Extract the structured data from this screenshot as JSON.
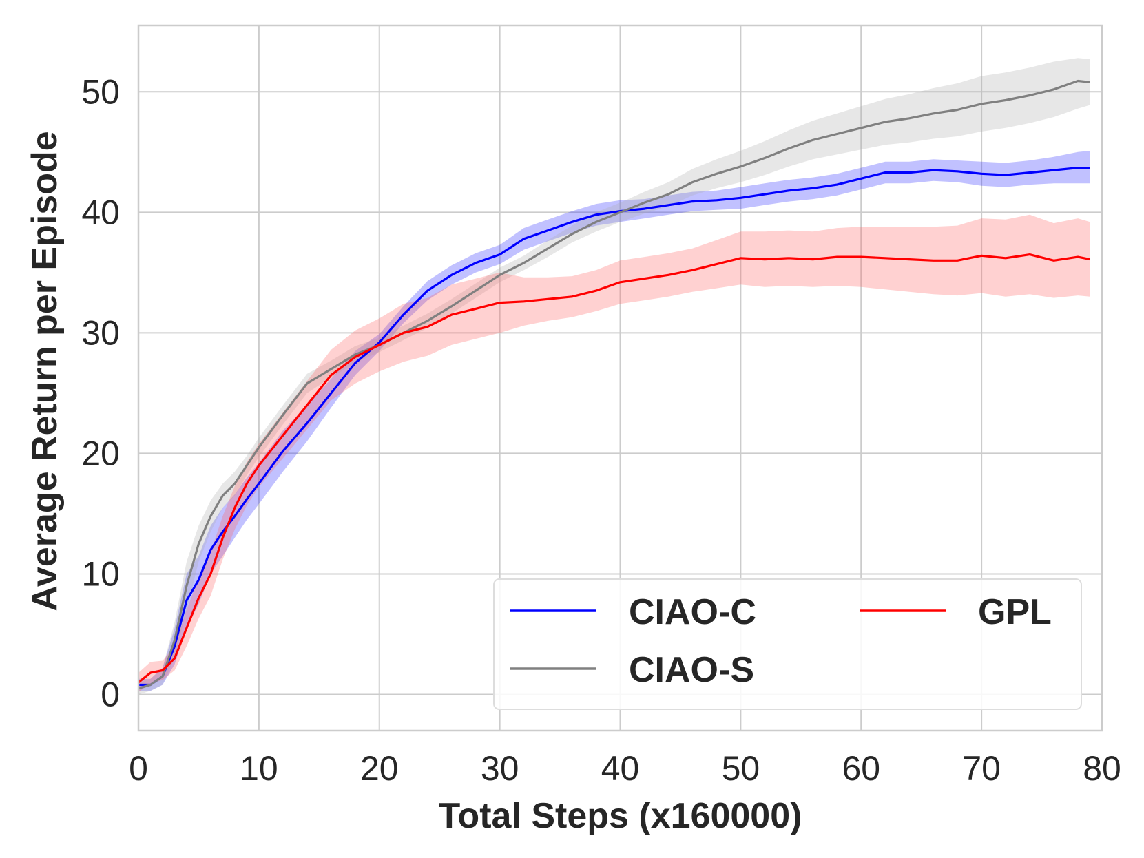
{
  "chart_data": {
    "type": "line",
    "xlabel": "Total Steps (x160000)",
    "ylabel": "Average Return per Episode",
    "xlim": [
      0,
      80
    ],
    "ylim": [
      -3,
      55.5
    ],
    "xticks": [
      0,
      10,
      20,
      30,
      40,
      50,
      60,
      70,
      80
    ],
    "yticks": [
      0,
      10,
      20,
      30,
      40,
      50
    ],
    "grid": true,
    "legend_position": "lower-right",
    "legend_columns": 2,
    "series": [
      {
        "name": "CIAO-C",
        "color": "#0000ff",
        "band_color": "#3333ff",
        "x": [
          0,
          1,
          2,
          3,
          4,
          5,
          6,
          7,
          8,
          9,
          10,
          12,
          14,
          16,
          18,
          20,
          22,
          24,
          26,
          28,
          30,
          32,
          34,
          36,
          38,
          40,
          42,
          44,
          46,
          48,
          50,
          52,
          54,
          56,
          58,
          60,
          62,
          64,
          66,
          68,
          70,
          72,
          74,
          76,
          78,
          79
        ],
        "y": [
          0.8,
          0.8,
          1.5,
          4.0,
          7.8,
          9.5,
          12.0,
          13.5,
          14.8,
          16.2,
          17.5,
          20.2,
          22.5,
          25.0,
          27.5,
          29.2,
          31.5,
          33.5,
          34.8,
          35.8,
          36.5,
          37.8,
          38.5,
          39.2,
          39.8,
          40.1,
          40.3,
          40.6,
          40.9,
          41.0,
          41.2,
          41.5,
          41.8,
          42.0,
          42.3,
          42.8,
          43.3,
          43.3,
          43.5,
          43.4,
          43.2,
          43.1,
          43.3,
          43.5,
          43.7,
          43.7
        ],
        "lower": [
          0.3,
          0.3,
          0.8,
          2.5,
          5.5,
          7.5,
          10.0,
          11.5,
          13.0,
          14.5,
          15.8,
          18.5,
          21.0,
          23.8,
          26.5,
          28.5,
          30.8,
          32.7,
          34.0,
          35.0,
          35.7,
          36.9,
          37.6,
          38.3,
          38.9,
          39.2,
          39.5,
          39.8,
          40.1,
          40.2,
          40.3,
          40.6,
          40.9,
          41.1,
          41.4,
          41.9,
          42.4,
          42.4,
          42.6,
          42.5,
          42.2,
          42.1,
          42.3,
          42.4,
          42.4,
          42.4
        ],
        "upper": [
          1.3,
          1.3,
          2.2,
          5.5,
          10.0,
          11.5,
          14.0,
          15.5,
          16.6,
          18.0,
          19.2,
          21.9,
          24.0,
          26.2,
          28.5,
          29.9,
          32.2,
          34.3,
          35.6,
          36.6,
          37.3,
          38.7,
          39.4,
          40.1,
          40.7,
          41.0,
          41.1,
          41.4,
          41.7,
          41.8,
          42.1,
          42.4,
          42.7,
          42.9,
          43.2,
          43.7,
          44.2,
          44.2,
          44.4,
          44.3,
          44.2,
          44.1,
          44.3,
          44.6,
          45.0,
          45.1
        ]
      },
      {
        "name": "CIAO-S",
        "color": "#808080",
        "band_color": "#b0b0b0",
        "x": [
          0,
          1,
          2,
          3,
          4,
          5,
          6,
          7,
          8,
          9,
          10,
          12,
          14,
          16,
          18,
          20,
          22,
          24,
          26,
          28,
          30,
          32,
          34,
          36,
          38,
          40,
          42,
          44,
          46,
          48,
          50,
          52,
          54,
          56,
          58,
          60,
          62,
          64,
          66,
          68,
          70,
          72,
          74,
          76,
          78,
          79
        ],
        "y": [
          0.5,
          0.8,
          1.5,
          4.5,
          9.0,
          12.5,
          14.8,
          16.5,
          17.5,
          19.0,
          20.5,
          23.2,
          25.8,
          27.0,
          28.2,
          29.0,
          30.0,
          31.0,
          32.2,
          33.5,
          34.8,
          35.8,
          37.0,
          38.2,
          39.2,
          40.0,
          40.8,
          41.5,
          42.5,
          43.2,
          43.8,
          44.5,
          45.3,
          46.0,
          46.5,
          47.0,
          47.5,
          47.8,
          48.2,
          48.5,
          49.0,
          49.3,
          49.7,
          50.2,
          50.9,
          50.8
        ],
        "lower": [
          0.0,
          0.3,
          0.8,
          3.0,
          7.0,
          11.0,
          13.5,
          15.5,
          16.5,
          18.2,
          19.7,
          22.4,
          25.0,
          26.3,
          27.5,
          28.4,
          29.4,
          30.4,
          31.6,
          32.9,
          34.2,
          35.2,
          36.3,
          37.5,
          38.4,
          39.2,
          39.9,
          40.5,
          41.4,
          42.0,
          42.5,
          43.1,
          43.8,
          44.4,
          44.8,
          45.2,
          45.6,
          45.8,
          46.1,
          46.3,
          46.7,
          47.0,
          47.4,
          47.9,
          48.6,
          48.9
        ],
        "upper": [
          1.0,
          1.3,
          2.2,
          6.0,
          11.0,
          14.0,
          16.1,
          17.5,
          18.5,
          19.8,
          21.3,
          24.0,
          26.6,
          27.7,
          28.9,
          29.6,
          30.6,
          31.6,
          32.8,
          34.1,
          35.4,
          36.4,
          37.7,
          38.9,
          40.0,
          40.8,
          41.7,
          42.5,
          43.6,
          44.4,
          45.1,
          45.9,
          46.8,
          47.6,
          48.2,
          48.8,
          49.4,
          49.8,
          50.3,
          50.7,
          51.3,
          51.6,
          52.0,
          52.5,
          52.8,
          52.7
        ]
      },
      {
        "name": "GPL",
        "color": "#ff0000",
        "band_color": "#ff6666",
        "x": [
          0,
          1,
          2,
          3,
          4,
          5,
          6,
          7,
          8,
          9,
          10,
          12,
          14,
          16,
          18,
          20,
          22,
          24,
          26,
          28,
          30,
          32,
          34,
          36,
          38,
          40,
          42,
          44,
          46,
          48,
          50,
          52,
          54,
          56,
          58,
          60,
          62,
          64,
          66,
          68,
          70,
          72,
          74,
          76,
          78,
          79
        ],
        "y": [
          1.0,
          1.8,
          2.0,
          3.0,
          5.5,
          8.0,
          10.0,
          13.0,
          15.5,
          17.5,
          19.0,
          21.5,
          24.0,
          26.5,
          28.0,
          29.0,
          30.0,
          30.5,
          31.5,
          32.0,
          32.5,
          32.6,
          32.8,
          33.0,
          33.5,
          34.2,
          34.5,
          34.8,
          35.2,
          35.7,
          36.2,
          36.1,
          36.2,
          36.1,
          36.3,
          36.3,
          36.2,
          36.1,
          36.0,
          36.0,
          36.4,
          36.2,
          36.5,
          36.0,
          36.3,
          36.1
        ],
        "lower": [
          0.2,
          0.9,
          1.2,
          2.0,
          4.0,
          6.3,
          8.2,
          11.2,
          13.7,
          15.7,
          17.2,
          19.6,
          22.0,
          24.4,
          25.8,
          26.8,
          27.6,
          28.1,
          29.0,
          29.5,
          30.0,
          30.6,
          31.0,
          31.3,
          31.8,
          32.4,
          32.7,
          33.0,
          33.4,
          33.7,
          34.0,
          33.8,
          33.9,
          33.8,
          33.9,
          33.8,
          33.6,
          33.4,
          33.2,
          33.1,
          33.3,
          33.0,
          33.2,
          32.9,
          33.1,
          33.0
        ],
        "upper": [
          1.8,
          2.7,
          2.8,
          4.0,
          7.0,
          9.7,
          11.8,
          14.8,
          17.3,
          19.3,
          20.8,
          23.4,
          26.0,
          28.6,
          30.2,
          31.2,
          32.4,
          32.9,
          34.0,
          34.5,
          35.0,
          34.6,
          34.6,
          34.7,
          35.2,
          36.0,
          36.3,
          36.6,
          37.0,
          37.7,
          38.4,
          38.4,
          38.5,
          38.4,
          38.7,
          38.8,
          38.8,
          38.8,
          38.8,
          38.9,
          39.5,
          39.4,
          39.8,
          39.1,
          39.5,
          39.2
        ]
      }
    ]
  },
  "legend": {
    "entries": [
      "CIAO-C",
      "CIAO-S",
      "GPL"
    ]
  },
  "colors": {
    "grid": "#cccccc",
    "frame": "#cccccc",
    "text": "#262626",
    "legend_border": "#dddddd"
  }
}
